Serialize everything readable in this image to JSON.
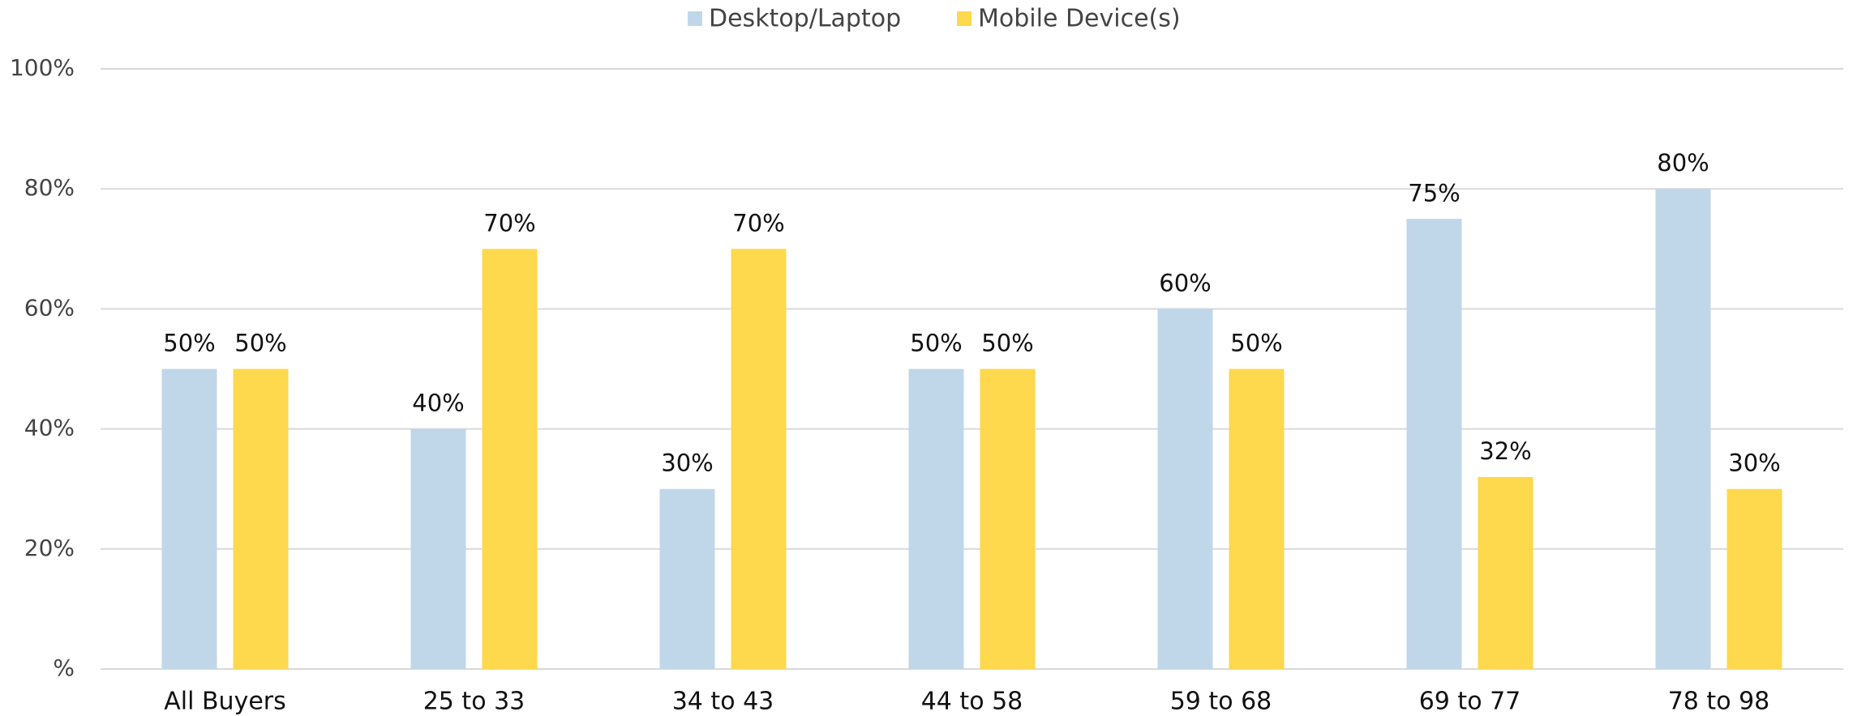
{
  "chart_data": {
    "type": "bar",
    "categories": [
      "All Buyers",
      "25 to 33",
      "34 to 43",
      "44 to 58",
      "59 to 68",
      "69 to 77",
      "78 to 98"
    ],
    "series": [
      {
        "name": "Desktop/Laptop",
        "color": "#c0d7ea",
        "values": [
          50,
          40,
          30,
          50,
          60,
          75,
          80
        ],
        "value_labels": [
          "50%",
          "40%",
          "30%",
          "50%",
          "60%",
          "75%",
          "80%"
        ]
      },
      {
        "name": "Mobile Device(s)",
        "color": "#fed84d",
        "values": [
          50,
          70,
          70,
          50,
          50,
          32,
          30
        ],
        "value_labels": [
          "50%",
          "70%",
          "70%",
          "50%",
          "50%",
          "32%",
          "30%"
        ]
      }
    ],
    "ylim": [
      0,
      100
    ],
    "yticks": [
      {
        "value": 0,
        "label": "%"
      },
      {
        "value": 20,
        "label": "20%"
      },
      {
        "value": 40,
        "label": "40%"
      },
      {
        "value": 60,
        "label": "60%"
      },
      {
        "value": 80,
        "label": "80%"
      },
      {
        "value": 100,
        "label": "100%"
      }
    ],
    "grid": true,
    "legend": "top"
  }
}
